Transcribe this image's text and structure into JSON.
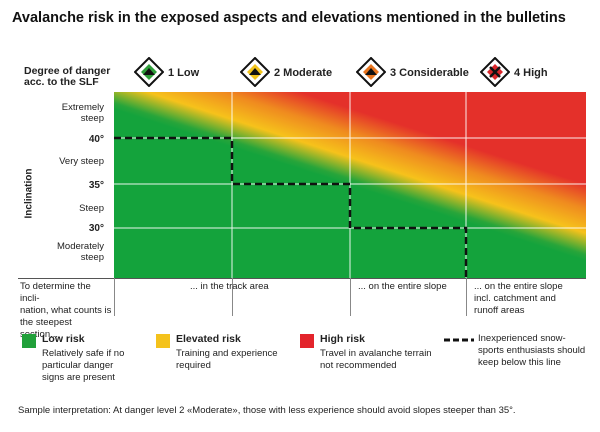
{
  "title": "Avalanche risk in the exposed aspects and elevations mentioned in the bulletins",
  "danger_label_line1": "Degree of danger",
  "danger_label_line2": "acc. to the SLF",
  "levels": [
    {
      "label": "1 Low",
      "color": "#2e9e3a"
    },
    {
      "label": "2 Moderate",
      "color": "#f2c41b"
    },
    {
      "label": "3 Considerable",
      "color": "#e8751f"
    },
    {
      "label": "4 High",
      "color": "#d9262a"
    }
  ],
  "y_axis": {
    "title": "Inclination",
    "bands": [
      {
        "line1": "Extremely",
        "line2": "steep"
      },
      {
        "line1": "Very steep",
        "line2": ""
      },
      {
        "line1": "Steep",
        "line2": ""
      },
      {
        "line1": "Moderately",
        "line2": "steep"
      }
    ],
    "angles": [
      "40°",
      "35°",
      "30°"
    ]
  },
  "columns": [
    {
      "lines": [
        "To determine the incli-",
        "nation, what counts is",
        "the steepest section..."
      ]
    },
    {
      "lines": [
        "... in the track area"
      ]
    },
    {
      "lines": [
        "... on the entire slope"
      ]
    },
    {
      "lines": [
        "... on the entire slope",
        "incl. catchment and",
        "runoff areas"
      ]
    }
  ],
  "legend": [
    {
      "title": "Low risk",
      "lines": [
        "Relatively safe if no",
        "particular danger",
        "signs are present"
      ],
      "color": "#21a03a"
    },
    {
      "title": "Elevated risk",
      "lines": [
        "Training and experience",
        "required"
      ],
      "color": "#f4c21c"
    },
    {
      "title": "High risk",
      "lines": [
        "Travel in avalanche terrain",
        "not recommended"
      ],
      "color": "#e3242b"
    },
    {
      "title": "",
      "lines": [
        "Inexperienced snow-",
        "sports enthusiasts should",
        "keep below this line"
      ],
      "color": "#111111"
    }
  ],
  "footer": "Sample interpretation: At danger level 2 «Moderate», those with less experience should avoid slopes steeper than 35°.",
  "icons": [
    "danger-level-1-icon",
    "danger-level-2-icon",
    "danger-level-3-icon",
    "danger-level-4-icon"
  ]
}
